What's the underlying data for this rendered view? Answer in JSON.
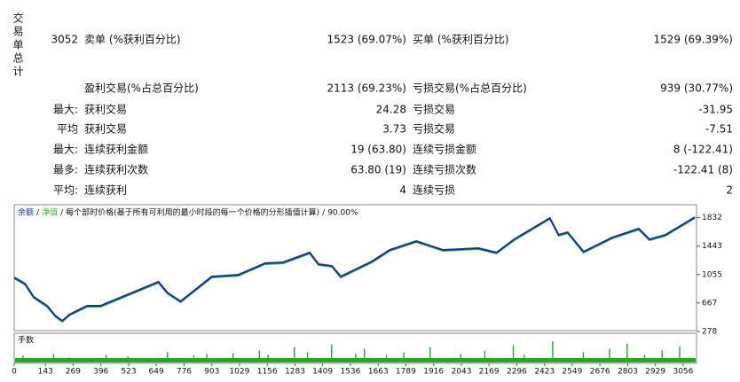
{
  "summary": {
    "label": "交易单总计",
    "rows": [
      {
        "lead": "3052",
        "label1": "卖单 (%获利百分比)",
        "value1": "1523 (69.07%)",
        "label2": "买单 (%获利百分比)",
        "value2": "1529 (69.39%)"
      },
      {
        "label1": "盈利交易(%占总百分比)",
        "value1": "2113 (69.23%)",
        "label2": "亏损交易(%占总百分比)",
        "value2": "939 (30.77%)"
      },
      {
        "lead": "最大:",
        "label1": "获利交易",
        "value1": "24.28",
        "label2": "亏损交易",
        "value2": "-31.95"
      },
      {
        "lead": "平均",
        "label1": "获利交易",
        "value1": "3.73",
        "label2": "亏损交易",
        "value2": "-7.51"
      },
      {
        "lead": "最大:",
        "label1": "连续获利金额",
        "value1": "19 (63.80)",
        "label2": "连续亏损金额",
        "value2": "8 (-122.41)"
      },
      {
        "lead": "最多:",
        "label1": "连续获利次数",
        "value1": "63.80 (19)",
        "label2": "连续亏损次数",
        "value2": "-122.41 (8)"
      },
      {
        "lead": "平均:",
        "label1": "连续获利",
        "value1": "4",
        "label2": "连续亏损",
        "value2": "2"
      }
    ]
  },
  "chart_data": {
    "type": "line",
    "subtitle": "每个部时价格(基于所有可利用的最小时段的每一个价格的分形插值计算)",
    "quality": "90.00%",
    "x": [
      0,
      49,
      89,
      150,
      191,
      220,
      252,
      333,
      394,
      659,
      699,
      760,
      903,
      1024,
      1146,
      1228,
      1350,
      1390,
      1451,
      1492,
      1634,
      1715,
      1837,
      1959,
      2121,
      2203,
      2284,
      2447,
      2487,
      2528,
      2601,
      2731,
      2853,
      2902,
      2975,
      3110
    ],
    "series": [
      {
        "name": "余额",
        "color": "#1a2f9c",
        "values": [
          1016,
          931,
          750,
          629,
          484,
          423,
          508,
          629,
          629,
          956,
          810,
          689,
          1028,
          1052,
          1210,
          1222,
          1355,
          1198,
          1173,
          1028,
          1234,
          1391,
          1512,
          1391,
          1415,
          1355,
          1536,
          1827,
          1597,
          1633,
          1367,
          1560,
          1681,
          1536,
          1597,
          1839
        ]
      },
      {
        "name": "净值",
        "color": "#2fb82f",
        "values": [
          1000,
          915,
          735,
          612,
          470,
          410,
          495,
          612,
          612,
          940,
          795,
          675,
          1012,
          1036,
          1195,
          1205,
          1340,
          1183,
          1158,
          1012,
          1218,
          1375,
          1497,
          1376,
          1400,
          1340,
          1520,
          1812,
          1582,
          1618,
          1352,
          1545,
          1666,
          1521,
          1582,
          1824
        ]
      }
    ],
    "xlim": [
      0,
      3117
    ],
    "ylim": [
      278,
      1948
    ],
    "xticks": [
      0,
      143,
      269,
      396,
      523,
      649,
      776,
      903,
      1029,
      1156,
      1283,
      1409,
      1536,
      1663,
      1789,
      1916,
      2043,
      2169,
      2296,
      2423,
      2549,
      2676,
      2803,
      2929,
      3056
    ],
    "yticks": [
      278,
      667,
      1055,
      1443,
      1832
    ],
    "volume": {
      "label": "手数",
      "color": "#22aa22",
      "ylim": [
        0,
        30
      ],
      "x": [
        40,
        180,
        250,
        420,
        520,
        700,
        820,
        880,
        1000,
        1120,
        1160,
        1280,
        1340,
        1450,
        1560,
        1600,
        1700,
        1780,
        1900,
        2040,
        2150,
        2280,
        2330,
        2460,
        2600,
        2720,
        2800,
        2880,
        2960,
        3040
      ],
      "values": [
        8,
        10,
        6,
        9,
        7,
        12,
        8,
        10,
        11,
        14,
        9,
        18,
        12,
        21,
        10,
        16,
        9,
        12,
        18,
        10,
        14,
        20,
        9,
        25,
        12,
        16,
        22,
        9,
        14,
        19
      ]
    }
  }
}
